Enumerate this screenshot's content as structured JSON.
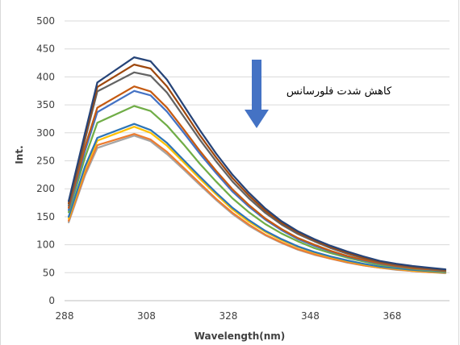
{
  "chart_data": {
    "type": "line",
    "xlabel": "Wavelength(nm)",
    "ylabel": "Int.",
    "xlim": [
      288,
      382
    ],
    "ylim": [
      0,
      500
    ],
    "xticks": [
      288,
      308,
      328,
      348,
      368
    ],
    "yticks": [
      0,
      50,
      100,
      150,
      200,
      250,
      300,
      350,
      400,
      450,
      500
    ],
    "grid": "horizontal",
    "annotation": {
      "text": "کاهش شدت فلورسانس",
      "arrow": "down",
      "arrow_color": "#4472C4"
    },
    "x": [
      289,
      293,
      296,
      305,
      309,
      313,
      317,
      321,
      325,
      329,
      333,
      337,
      341,
      345,
      349,
      353,
      357,
      361,
      365,
      369,
      373,
      377,
      381
    ],
    "series": [
      {
        "color": "#264478",
        "values": [
          178,
          300,
          390,
          435,
          428,
          395,
          350,
          305,
          263,
          225,
          193,
          165,
          142,
          124,
          110,
          98,
          88,
          79,
          71,
          66,
          62,
          59,
          56
        ]
      },
      {
        "color": "#9E480E",
        "values": [
          174,
          294,
          382,
          422,
          415,
          383,
          340,
          296,
          256,
          219,
          188,
          161,
          139,
          122,
          108,
          96,
          86,
          77,
          70,
          65,
          61,
          58,
          55
        ]
      },
      {
        "color": "#636363",
        "values": [
          170,
          288,
          374,
          408,
          402,
          372,
          330,
          288,
          249,
          213,
          183,
          157,
          136,
          119,
          106,
          94,
          84,
          76,
          69,
          64,
          60,
          57,
          54
        ]
      },
      {
        "color": "#C55A11",
        "values": [
          166,
          275,
          345,
          383,
          374,
          345,
          307,
          268,
          232,
          199,
          171,
          147,
          128,
          112,
          100,
          89,
          80,
          73,
          67,
          62,
          58,
          56,
          53
        ]
      },
      {
        "color": "#4472C4",
        "values": [
          162,
          268,
          337,
          375,
          367,
          338,
          301,
          263,
          228,
          195,
          168,
          145,
          126,
          110,
          98,
          88,
          79,
          72,
          66,
          61,
          58,
          55,
          53
        ]
      },
      {
        "color": "#70AD47",
        "values": [
          158,
          256,
          318,
          348,
          339,
          313,
          280,
          245,
          213,
          183,
          158,
          137,
          120,
          106,
          94,
          85,
          77,
          70,
          64,
          60,
          57,
          54,
          52
        ]
      },
      {
        "color": "#2E75B6",
        "values": [
          150,
          240,
          291,
          316,
          305,
          282,
          252,
          222,
          193,
          166,
          144,
          125,
          110,
          97,
          87,
          79,
          72,
          66,
          61,
          58,
          55,
          53,
          51
        ]
      },
      {
        "color": "#FFC000",
        "values": [
          147,
          236,
          286,
          311,
          300,
          277,
          248,
          218,
          190,
          163,
          141,
          123,
          108,
          96,
          86,
          78,
          71,
          65,
          60,
          57,
          54,
          52,
          50
        ]
      },
      {
        "color": "#ED7D31",
        "values": [
          143,
          228,
          278,
          298,
          288,
          266,
          238,
          210,
          182,
          157,
          136,
          118,
          104,
          92,
          83,
          75,
          69,
          63,
          59,
          56,
          53,
          51,
          50
        ]
      },
      {
        "color": "#A5A5A5",
        "values": [
          140,
          224,
          273,
          295,
          285,
          262,
          235,
          207,
          180,
          155,
          134,
          117,
          103,
          91,
          82,
          75,
          68,
          63,
          59,
          55,
          53,
          51,
          49
        ]
      }
    ]
  }
}
